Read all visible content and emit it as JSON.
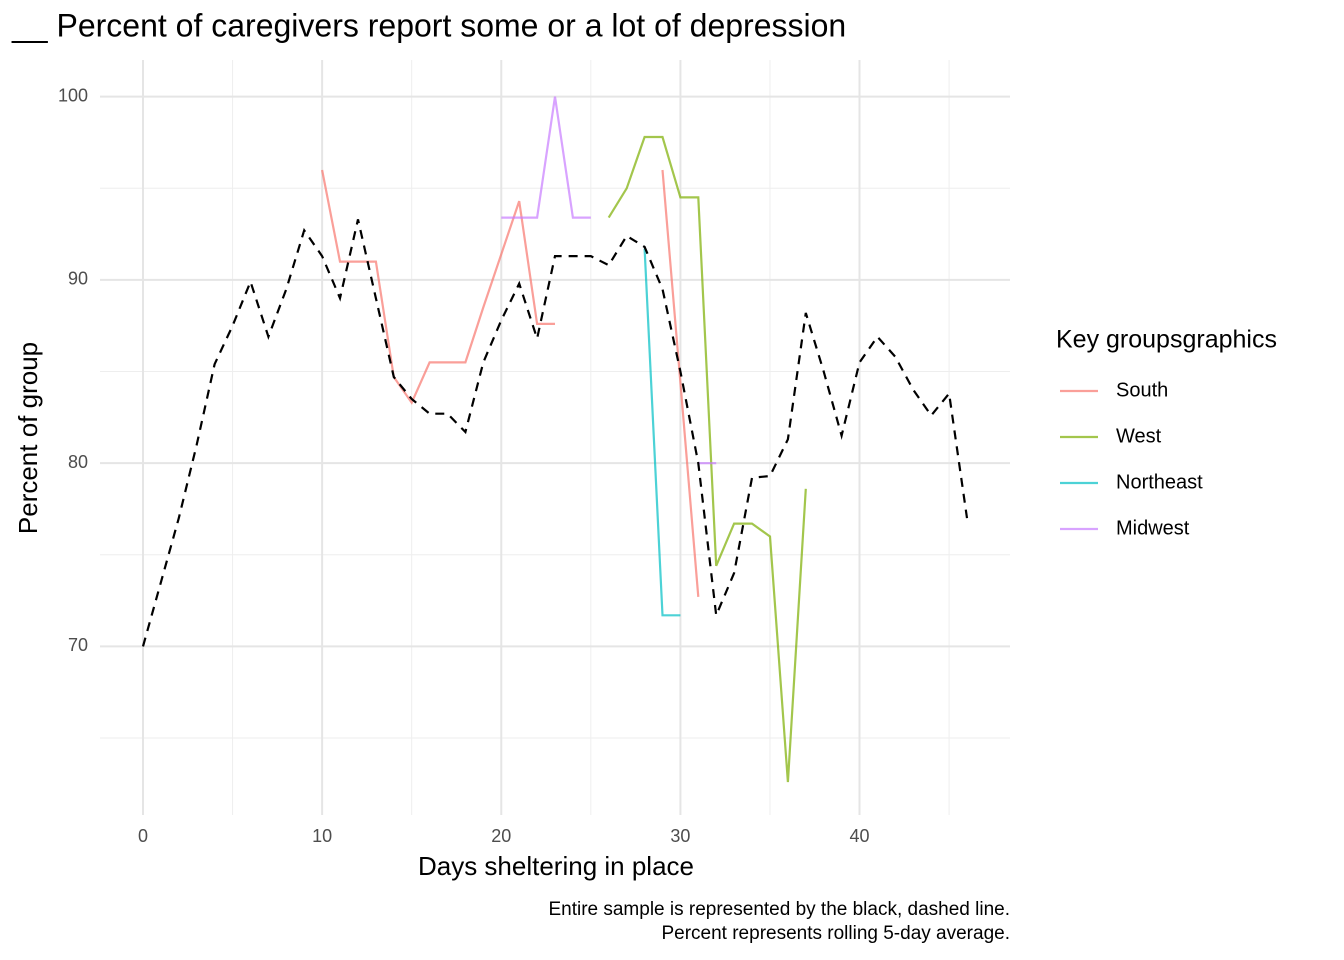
{
  "chart_data": {
    "type": "line",
    "title": "__ Percent of caregivers report some or a lot of depression",
    "x_label": "Days sheltering in place",
    "y_label": "Percent of group",
    "caption": [
      "Entire sample is represented by the black, dashed line.",
      "Percent represents rolling 5-day average."
    ],
    "legend_title": "Key groupsgraphics",
    "legend_position": "right",
    "grid": true,
    "xlim": [
      -2.4,
      48.4
    ],
    "ylim": [
      60.8,
      102.0
    ],
    "xticks": [
      0,
      10,
      20,
      30,
      40
    ],
    "yticks": [
      70,
      80,
      90,
      100
    ],
    "minor_xticks": [
      5,
      15,
      25,
      35,
      45
    ],
    "minor_yticks": [
      65,
      75,
      85,
      95
    ],
    "x": [
      0,
      1,
      2,
      3,
      4,
      5,
      6,
      7,
      8,
      9,
      10,
      11,
      12,
      13,
      14,
      15,
      16,
      17,
      18,
      19,
      20,
      21,
      22,
      23,
      24,
      25,
      26,
      27,
      28,
      29,
      30,
      31,
      32,
      33,
      34,
      35,
      36,
      37,
      38,
      39,
      40,
      41,
      42,
      43,
      44,
      45,
      46
    ],
    "overall": {
      "color": "#000000",
      "dashed": true,
      "values": [
        70,
        73.5,
        77,
        81,
        85.4,
        87.5,
        89.9,
        86.9,
        89.5,
        92.7,
        91.3,
        89,
        93.3,
        89,
        84.7,
        83.5,
        82.7,
        82.7,
        81.7,
        85.5,
        87.8,
        89.8,
        86.8,
        91.3,
        91.3,
        91.3,
        90.8,
        92.4,
        91.8,
        89.5,
        85,
        80,
        71.7,
        74,
        79.2,
        79.3,
        81.3,
        88.2,
        85,
        81.5,
        85.5,
        86.9,
        85.8,
        84,
        82.6,
        83.8,
        77
      ]
    },
    "series": [
      {
        "name": "South",
        "color": "#F8766D",
        "values": [
          null,
          null,
          null,
          null,
          null,
          null,
          null,
          null,
          null,
          null,
          96,
          91,
          91,
          91,
          84.7,
          83.3,
          85.5,
          85.5,
          85.5,
          88.5,
          91.4,
          94.3,
          87.6,
          87.6,
          null,
          null,
          null,
          null,
          null,
          96,
          84.4,
          72.7,
          null,
          null,
          null,
          null,
          null,
          null,
          null,
          null,
          null,
          null,
          null,
          null,
          null,
          null,
          null
        ]
      },
      {
        "name": "West",
        "color": "#7CAE00",
        "values": [
          null,
          null,
          null,
          null,
          null,
          null,
          null,
          null,
          null,
          null,
          null,
          null,
          null,
          null,
          null,
          null,
          null,
          null,
          null,
          null,
          null,
          null,
          null,
          null,
          null,
          null,
          93.4,
          95,
          97.8,
          97.8,
          94.5,
          94.5,
          74.4,
          76.7,
          76.7,
          76,
          62.6,
          78.6,
          null,
          null,
          null,
          null,
          null,
          null,
          null,
          null,
          null
        ]
      },
      {
        "name": "Northeast",
        "color": "#00BFC4",
        "values": [
          null,
          null,
          null,
          null,
          null,
          null,
          null,
          null,
          null,
          null,
          null,
          null,
          null,
          null,
          null,
          null,
          null,
          null,
          null,
          null,
          null,
          null,
          null,
          null,
          null,
          null,
          null,
          null,
          91.7,
          71.7,
          71.7,
          null,
          null,
          null,
          null,
          null,
          null,
          null,
          null,
          null,
          null,
          null,
          null,
          null,
          null,
          null,
          null
        ]
      },
      {
        "name": "Midwest",
        "color": "#C77CFF",
        "values": [
          null,
          null,
          null,
          null,
          null,
          null,
          null,
          null,
          null,
          null,
          null,
          null,
          null,
          null,
          null,
          null,
          null,
          null,
          null,
          null,
          93.4,
          93.4,
          93.4,
          100,
          93.4,
          93.4,
          null,
          null,
          null,
          null,
          null,
          80,
          80,
          null,
          null,
          null,
          null,
          null,
          null,
          null,
          null,
          null,
          null,
          null,
          null,
          null,
          null
        ]
      }
    ]
  }
}
